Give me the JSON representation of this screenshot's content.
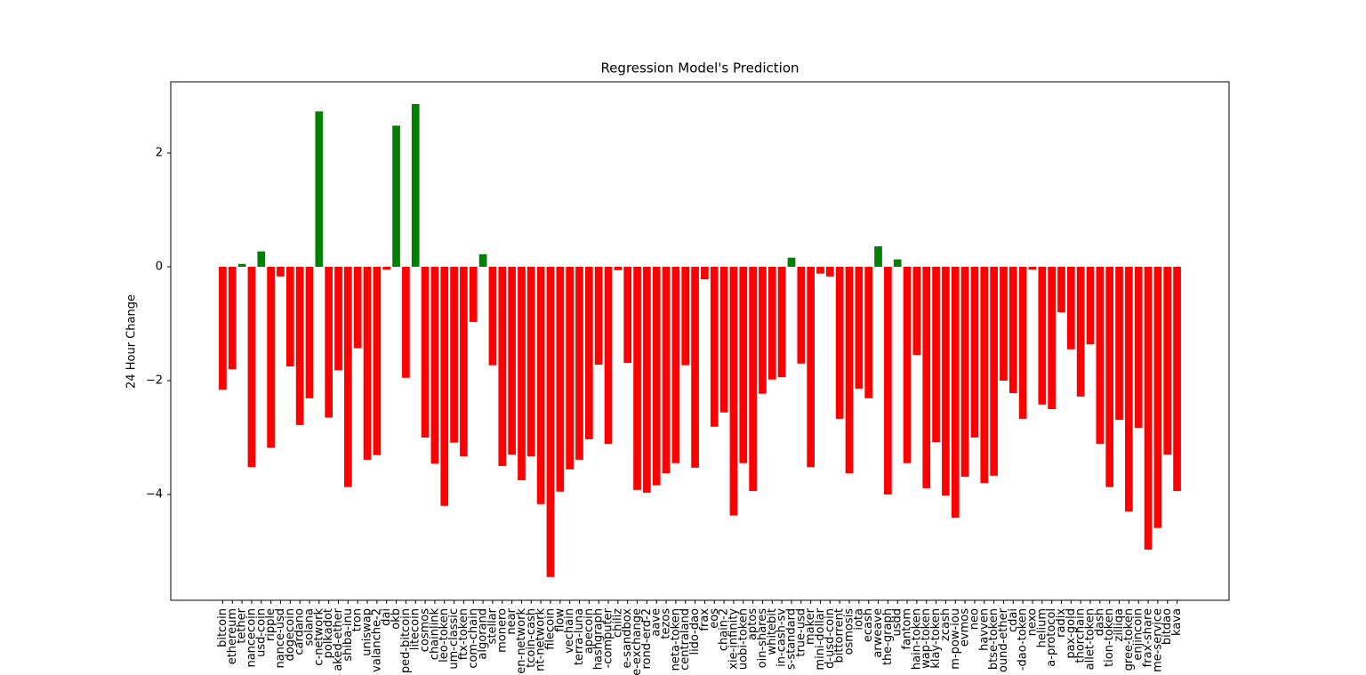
{
  "chart_data": {
    "type": "bar",
    "title": "Regression Model's Prediction",
    "ylabel": "24 Hour Change",
    "categories": [
      "bitcoin",
      "ethereum",
      "tether",
      "nancecoin",
      "usd-coin",
      "ripple",
      "nance-usd",
      "dogecoin",
      "cardano",
      "solana",
      "c-network",
      "polkadot",
      "aked-ether",
      "shiba-inu",
      "tron",
      "uniswap",
      "valanche-2",
      "dai",
      "okb",
      "ped-bitcoin",
      "litecoin",
      "cosmos",
      "chainlink",
      "leo-token",
      "um-classic",
      "ftx-token",
      "com-chain",
      "algorand",
      "stellar",
      "monero",
      "near",
      "en-network",
      "tcoin-cash",
      "nt-network",
      "filecoin",
      "flow",
      "vechain",
      "terra-luna",
      "apecoin",
      "hashgraph",
      "-computer",
      "chiliz",
      "e-sandbox",
      "e-exchange",
      "rond-erd-2",
      "aave",
      "tezos",
      "neta-token",
      "centraland",
      "lido-dao",
      "frax",
      "eos",
      "chain-2",
      "xie-infinity",
      "uobi-token",
      "aptos",
      "oin-shares",
      "whitebit",
      "in-cash-sv",
      "s-standard",
      "true-usd",
      "maker",
      "mini-dollar",
      "d-usd-coin",
      "bittorrent",
      "osmosis",
      "iota",
      "ecash",
      "arweave",
      "the-graph",
      "usdd",
      "fantom",
      "hain-token",
      "wap-token",
      "klay-token",
      "zcash",
      "m-pow-iou",
      "evmos",
      "neo",
      "havven",
      "btse-token",
      "ound-ether",
      "cdai",
      "-dao-token",
      "nexo",
      "helium",
      "a-protocol",
      "radix",
      "pax-gold",
      "thorchain",
      "allet-token",
      "dash",
      "tion-token",
      "zilliqa",
      "gree-token",
      "enjincoin",
      "frax-share",
      "me-service",
      "bitdao",
      "kava"
    ],
    "values": [
      -2.16,
      -1.8,
      0.05,
      -3.52,
      0.27,
      -3.18,
      -0.17,
      -1.75,
      -2.78,
      -2.31,
      2.73,
      -2.65,
      -1.82,
      -3.87,
      -1.43,
      -3.39,
      -3.31,
      -0.05,
      2.48,
      -1.95,
      2.86,
      -3.0,
      -3.46,
      -4.2,
      -3.09,
      -3.33,
      -0.97,
      0.22,
      -1.73,
      -3.5,
      -3.3,
      -3.75,
      -3.33,
      -4.17,
      -5.45,
      -3.95,
      -3.56,
      -3.39,
      -3.03,
      -1.72,
      -3.11,
      -0.06,
      -1.69,
      -3.92,
      -3.97,
      -3.84,
      -3.63,
      -3.45,
      -1.73,
      -3.53,
      -0.22,
      -2.81,
      -2.56,
      -4.37,
      -3.45,
      -3.94,
      -2.23,
      -1.98,
      -1.94,
      0.16,
      -1.7,
      -3.52,
      -0.12,
      -0.17,
      -2.67,
      -3.63,
      -2.14,
      -2.31,
      0.36,
      -4.0,
      0.13,
      -3.45,
      -1.55,
      -3.89,
      -3.08,
      -4.02,
      -4.41,
      -3.69,
      -3.0,
      -3.8,
      -3.67,
      -2.0,
      -2.22,
      -2.67,
      -0.05,
      -2.42,
      -2.5,
      -0.8,
      -1.45,
      -2.28,
      -1.36,
      -3.11,
      -3.87,
      -2.69,
      -4.3,
      -2.83,
      -4.97,
      -4.59,
      -3.3,
      -3.94
    ],
    "positive_color": "#008000",
    "negative_color": "#ff0000",
    "ylim": [
      -5.86,
      3.25
    ],
    "yticks": [
      {
        "value": -4,
        "label": "−4"
      },
      {
        "value": -2,
        "label": "−2"
      },
      0,
      2
    ]
  }
}
